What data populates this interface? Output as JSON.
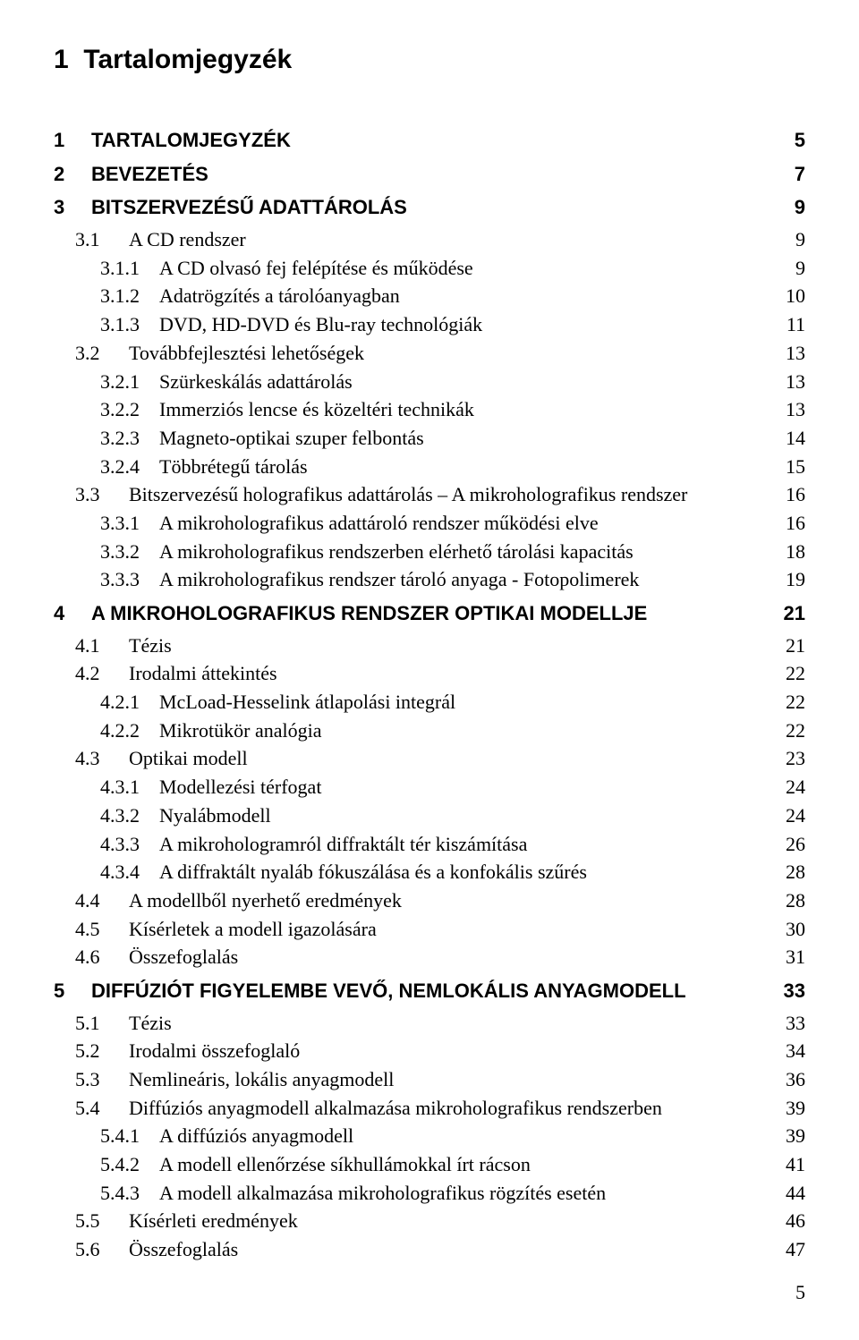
{
  "title_line": {
    "num": "1",
    "label": "Tartalomjegyzék"
  },
  "toc": [
    {
      "level": 1,
      "num": "1",
      "label": "TARTALOMJEGYZÉK",
      "page": "5"
    },
    {
      "level": 1,
      "num": "2",
      "label": "BEVEZETÉS",
      "page": "7"
    },
    {
      "level": 1,
      "num": "3",
      "label": "BITSZERVEZÉSŰ ADATTÁROLÁS",
      "page": "9"
    },
    {
      "level": 2,
      "num": "3.1",
      "label": "A CD rendszer",
      "page": "9"
    },
    {
      "level": 3,
      "num": "3.1.1",
      "label": "A CD olvasó fej felépítése és működése",
      "page": "9"
    },
    {
      "level": 3,
      "num": "3.1.2",
      "label": "Adatrögzítés a tárolóanyagban",
      "page": "10"
    },
    {
      "level": 3,
      "num": "3.1.3",
      "label": "DVD, HD-DVD és Blu-ray technológiák",
      "page": "11"
    },
    {
      "level": 2,
      "num": "3.2",
      "label": "Továbbfejlesztési lehetőségek",
      "page": "13"
    },
    {
      "level": 3,
      "num": "3.2.1",
      "label": "Szürkeskálás adattárolás",
      "page": "13"
    },
    {
      "level": 3,
      "num": "3.2.2",
      "label": "Immerziós lencse és közeltéri technikák",
      "page": "13"
    },
    {
      "level": 3,
      "num": "3.2.3",
      "label": "Magneto-optikai szuper felbontás",
      "page": "14"
    },
    {
      "level": 3,
      "num": "3.2.4",
      "label": "Többrétegű tárolás",
      "page": "15"
    },
    {
      "level": 2,
      "num": "3.3",
      "label": "Bitszervezésű holografikus adattárolás – A mikroholografikus rendszer",
      "page": "16"
    },
    {
      "level": 3,
      "num": "3.3.1",
      "label": "A mikroholografikus adattároló rendszer működési elve",
      "page": "16"
    },
    {
      "level": 3,
      "num": "3.3.2",
      "label": "A mikroholografikus rendszerben elérhető tárolási kapacitás",
      "page": "18"
    },
    {
      "level": 3,
      "num": "3.3.3",
      "label": "A mikroholografikus rendszer tároló anyaga - Fotopolimerek",
      "page": "19"
    },
    {
      "level": 1,
      "num": "4",
      "label": "A MIKROHOLOGRAFIKUS RENDSZER OPTIKAI MODELLJE",
      "page": "21"
    },
    {
      "level": 2,
      "num": "4.1",
      "label": "Tézis",
      "page": "21"
    },
    {
      "level": 2,
      "num": "4.2",
      "label": "Irodalmi áttekintés",
      "page": "22"
    },
    {
      "level": 3,
      "num": "4.2.1",
      "label": "McLoad-Hesselink átlapolási integrál",
      "page": "22"
    },
    {
      "level": 3,
      "num": "4.2.2",
      "label": "Mikrotükör analógia",
      "page": "22"
    },
    {
      "level": 2,
      "num": "4.3",
      "label": "Optikai modell",
      "page": "23"
    },
    {
      "level": 3,
      "num": "4.3.1",
      "label": "Modellezési térfogat",
      "page": "24"
    },
    {
      "level": 3,
      "num": "4.3.2",
      "label": "Nyalábmodell",
      "page": "24"
    },
    {
      "level": 3,
      "num": "4.3.3",
      "label": "A mikrohologramról diffraktált tér kiszámítása",
      "page": "26"
    },
    {
      "level": 3,
      "num": "4.3.4",
      "label": "A diffraktált nyaláb fókuszálása és a konfokális szűrés",
      "page": "28"
    },
    {
      "level": 2,
      "num": "4.4",
      "label": "A modellből nyerhető eredmények",
      "page": "28"
    },
    {
      "level": 2,
      "num": "4.5",
      "label": "Kísérletek a modell igazolására",
      "page": "30"
    },
    {
      "level": 2,
      "num": "4.6",
      "label": "Összefoglalás",
      "page": "31"
    },
    {
      "level": 1,
      "num": "5",
      "label": "DIFFÚZIÓT FIGYELEMBE VEVŐ, NEMLOKÁLIS ANYAGMODELL",
      "page": "33"
    },
    {
      "level": 2,
      "num": "5.1",
      "label": "Tézis",
      "page": "33"
    },
    {
      "level": 2,
      "num": "5.2",
      "label": "Irodalmi összefoglaló",
      "page": "34"
    },
    {
      "level": 2,
      "num": "5.3",
      "label": "Nemlineáris, lokális anyagmodell",
      "page": "36"
    },
    {
      "level": 2,
      "num": "5.4",
      "label": "Diffúziós anyagmodell alkalmazása mikroholografikus rendszerben",
      "page": "39"
    },
    {
      "level": 3,
      "num": "5.4.1",
      "label": "A diffúziós anyagmodell",
      "page": "39"
    },
    {
      "level": 3,
      "num": "5.4.2",
      "label": "A modell ellenőrzése síkhullámokkal írt rácson",
      "page": "41"
    },
    {
      "level": 3,
      "num": "5.4.3",
      "label": "A modell alkalmazása mikroholografikus rögzítés esetén",
      "page": "44"
    },
    {
      "level": 2,
      "num": "5.5",
      "label": "Kísérleti eredmények",
      "page": "46"
    },
    {
      "level": 2,
      "num": "5.6",
      "label": "Összefoglalás",
      "page": "47"
    }
  ],
  "page_number": "5"
}
